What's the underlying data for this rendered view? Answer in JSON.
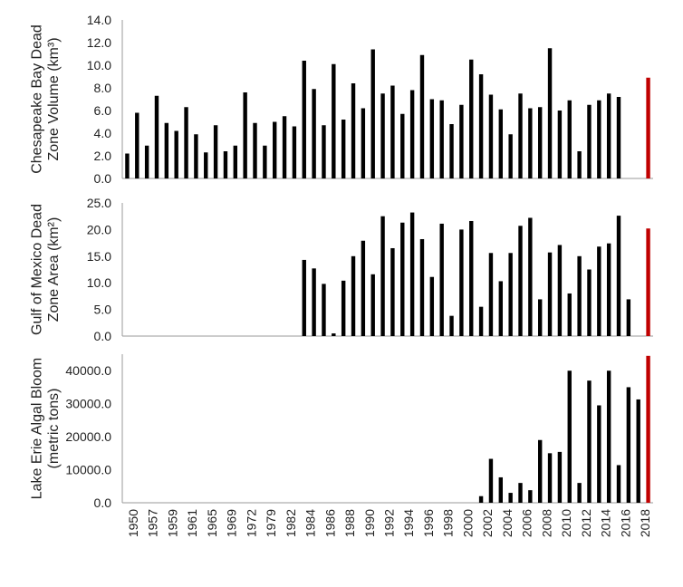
{
  "colors": {
    "bar": "#000000",
    "highlight": "#c00000",
    "axis": "#9a9a9a",
    "text": "#222222"
  },
  "chart_data": [
    {
      "type": "bar",
      "ylabel": [
        "Chesapeake Bay Dead",
        "Zone Volume (km³)"
      ],
      "ylim": [
        0,
        14
      ],
      "yticks": [
        "0.0",
        "2.0",
        "4.0",
        "6.0",
        "8.0",
        "10.0",
        "12.0",
        "14.0"
      ],
      "start_year": 1950,
      "values": [
        2.2,
        5.8,
        2.9,
        7.3,
        4.9,
        4.2,
        6.3,
        3.9,
        2.3,
        4.7,
        2.4,
        2.9,
        7.6,
        4.9,
        2.9,
        5.0,
        5.5,
        4.6,
        10.4,
        7.9,
        4.7,
        10.1,
        5.2,
        8.4,
        6.2,
        11.4,
        7.5,
        8.2,
        5.7,
        7.8,
        10.9,
        7.0,
        6.9,
        4.8,
        6.5,
        10.5,
        9.2,
        7.4,
        6.1,
        3.9,
        7.5,
        6.2,
        6.3,
        11.5,
        6.0,
        6.9,
        2.4,
        6.5,
        6.9,
        7.5,
        7.2,
        8.9
      ]
    },
    {
      "type": "bar",
      "ylabel": [
        "Gulf of Mexico Dead",
        "Zone Area (km²)"
      ],
      "ylim": [
        0,
        25
      ],
      "yticks": [
        "0.0",
        "5.0",
        "10.0",
        "15.0",
        "20.0",
        "25.0"
      ],
      "start_year": 1950,
      "values": [
        0,
        0,
        0,
        0,
        0,
        0,
        0,
        0,
        0,
        0,
        0,
        0,
        0,
        0,
        0,
        0,
        0,
        0,
        14.3,
        12.7,
        9.8,
        0.5,
        10.4,
        15.0,
        17.9,
        11.6,
        22.5,
        16.5,
        21.3,
        23.2,
        18.2,
        11.1,
        21.1,
        3.8,
        20.0,
        21.6,
        5.5,
        15.6,
        10.3,
        15.6,
        20.7,
        22.2,
        6.9,
        15.7,
        17.1,
        8.0,
        15.0,
        12.5,
        16.8,
        17.4,
        22.6,
        6.9,
        20.2
      ]
    },
    {
      "type": "bar",
      "ylabel": [
        "Lake Erie Algal Bloom",
        "(metric tons)"
      ],
      "ylim": [
        0,
        45000
      ],
      "yticks": [
        "0.0",
        "10000.0",
        "20000.0",
        "30000.0",
        "40000.0"
      ],
      "start_year": 1950,
      "values": [
        0,
        0,
        0,
        0,
        0,
        0,
        0,
        0,
        0,
        0,
        0,
        0,
        0,
        0,
        0,
        0,
        0,
        0,
        0,
        0,
        0,
        0,
        0,
        0,
        0,
        0,
        0,
        0,
        0,
        0,
        0,
        0,
        0,
        0,
        0,
        0,
        2000,
        13300,
        7700,
        3000,
        6000,
        3800,
        19000,
        15000,
        15400,
        40000,
        6000,
        37000,
        29500,
        40000,
        11400,
        35000,
        31300,
        44500
      ]
    }
  ],
  "x_ticks": [
    "1950",
    "1957",
    "1959",
    "1961",
    "1965",
    "1969",
    "1972",
    "1979",
    "1982",
    "1984",
    "1986",
    "1988",
    "1990",
    "1992",
    "1994",
    "1996",
    "1998",
    "2000",
    "2002",
    "2004",
    "2006",
    "2008",
    "2010",
    "2012",
    "2014",
    "2016",
    "2018"
  ]
}
